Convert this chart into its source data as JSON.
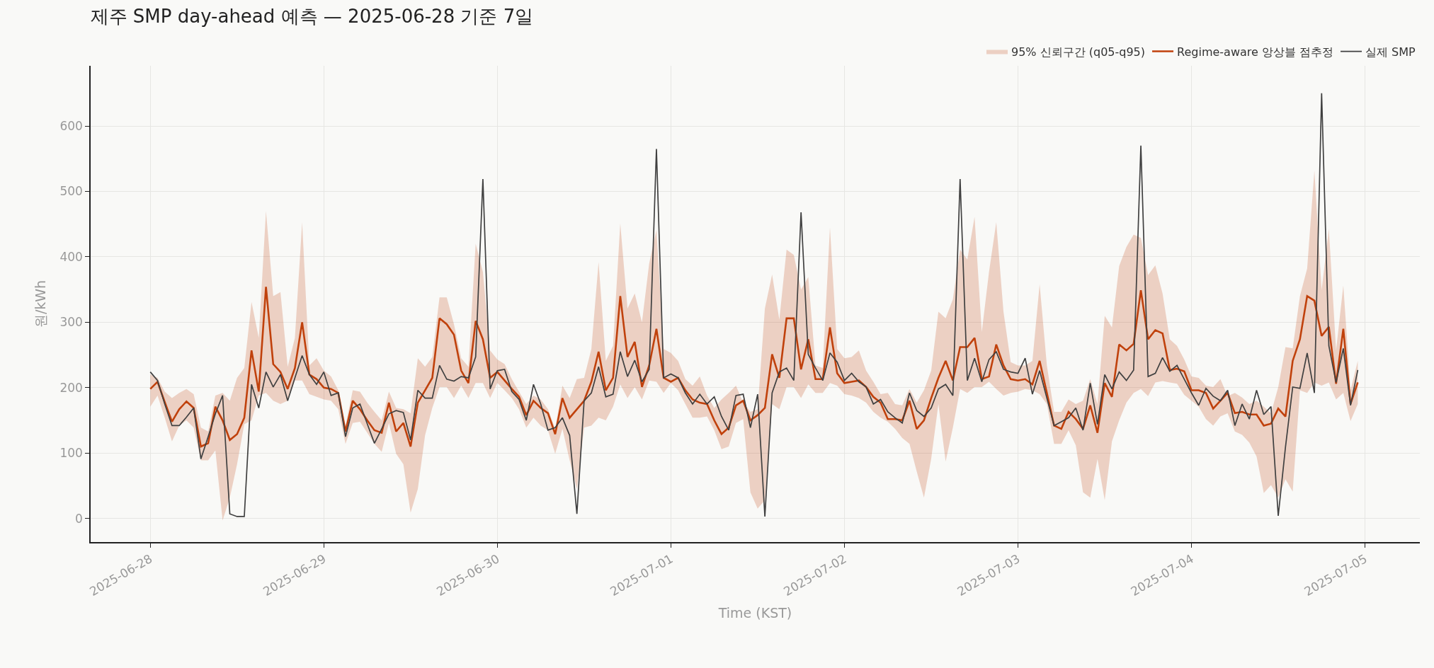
{
  "chart_data": {
    "type": "line",
    "title": "제주 SMP day-ahead 예측 — 2025-06-28 기준 7일",
    "xlabel": "Time (KST)",
    "ylabel": "원/kWh",
    "x": [
      "2025-06-28T00:00",
      "2025-06-28T01:00",
      "2025-06-28T02:00",
      "2025-06-28T03:00",
      "2025-06-28T04:00",
      "2025-06-28T05:00",
      "2025-06-28T06:00",
      "2025-06-28T07:00",
      "2025-06-28T08:00",
      "2025-06-28T09:00",
      "2025-06-28T10:00",
      "2025-06-28T11:00",
      "2025-06-28T12:00",
      "2025-06-28T13:00",
      "2025-06-28T14:00",
      "2025-06-28T15:00",
      "2025-06-28T16:00",
      "2025-06-28T17:00",
      "2025-06-28T18:00",
      "2025-06-28T19:00",
      "2025-06-28T20:00",
      "2025-06-28T21:00",
      "2025-06-28T22:00",
      "2025-06-28T23:00",
      "2025-06-29T00:00",
      "2025-06-29T01:00",
      "2025-06-29T02:00",
      "2025-06-29T03:00",
      "2025-06-29T04:00",
      "2025-06-29T05:00",
      "2025-06-29T06:00",
      "2025-06-29T07:00",
      "2025-06-29T08:00",
      "2025-06-29T09:00",
      "2025-06-29T10:00",
      "2025-06-29T11:00",
      "2025-06-29T12:00",
      "2025-06-29T13:00",
      "2025-06-29T14:00",
      "2025-06-29T15:00",
      "2025-06-29T16:00",
      "2025-06-29T17:00",
      "2025-06-29T18:00",
      "2025-06-29T19:00",
      "2025-06-29T20:00",
      "2025-06-29T21:00",
      "2025-06-29T22:00",
      "2025-06-29T23:00",
      "2025-06-30T00:00",
      "2025-06-30T01:00",
      "2025-06-30T02:00",
      "2025-06-30T03:00",
      "2025-06-30T04:00",
      "2025-06-30T05:00",
      "2025-06-30T06:00",
      "2025-06-30T07:00",
      "2025-06-30T08:00",
      "2025-06-30T09:00",
      "2025-06-30T10:00",
      "2025-06-30T11:00",
      "2025-06-30T12:00",
      "2025-06-30T13:00",
      "2025-06-30T14:00",
      "2025-06-30T15:00",
      "2025-06-30T16:00",
      "2025-06-30T17:00",
      "2025-06-30T18:00",
      "2025-06-30T19:00",
      "2025-06-30T20:00",
      "2025-06-30T21:00",
      "2025-06-30T22:00",
      "2025-06-30T23:00",
      "2025-07-01T00:00",
      "2025-07-01T01:00",
      "2025-07-01T02:00",
      "2025-07-01T03:00",
      "2025-07-01T04:00",
      "2025-07-01T05:00",
      "2025-07-01T06:00",
      "2025-07-01T07:00",
      "2025-07-01T08:00",
      "2025-07-01T09:00",
      "2025-07-01T10:00",
      "2025-07-01T11:00",
      "2025-07-01T12:00",
      "2025-07-01T13:00",
      "2025-07-01T14:00",
      "2025-07-01T15:00",
      "2025-07-01T16:00",
      "2025-07-01T17:00",
      "2025-07-01T18:00",
      "2025-07-01T19:00",
      "2025-07-01T20:00",
      "2025-07-01T21:00",
      "2025-07-01T22:00",
      "2025-07-01T23:00",
      "2025-07-02T00:00",
      "2025-07-02T01:00",
      "2025-07-02T02:00",
      "2025-07-02T03:00",
      "2025-07-02T04:00",
      "2025-07-02T05:00",
      "2025-07-02T06:00",
      "2025-07-02T07:00",
      "2025-07-02T08:00",
      "2025-07-02T09:00",
      "2025-07-02T10:00",
      "2025-07-02T11:00",
      "2025-07-02T12:00",
      "2025-07-02T13:00",
      "2025-07-02T14:00",
      "2025-07-02T15:00",
      "2025-07-02T16:00",
      "2025-07-02T17:00",
      "2025-07-02T18:00",
      "2025-07-02T19:00",
      "2025-07-02T20:00",
      "2025-07-02T21:00",
      "2025-07-02T22:00",
      "2025-07-02T23:00",
      "2025-07-03T00:00",
      "2025-07-03T01:00",
      "2025-07-03T02:00",
      "2025-07-03T03:00",
      "2025-07-03T04:00",
      "2025-07-03T05:00",
      "2025-07-03T06:00",
      "2025-07-03T07:00",
      "2025-07-03T08:00",
      "2025-07-03T09:00",
      "2025-07-03T10:00",
      "2025-07-03T11:00",
      "2025-07-03T12:00",
      "2025-07-03T13:00",
      "2025-07-03T14:00",
      "2025-07-03T15:00",
      "2025-07-03T16:00",
      "2025-07-03T17:00",
      "2025-07-03T18:00",
      "2025-07-03T19:00",
      "2025-07-03T20:00",
      "2025-07-03T21:00",
      "2025-07-03T22:00",
      "2025-07-03T23:00",
      "2025-07-04T00:00",
      "2025-07-04T01:00",
      "2025-07-04T02:00",
      "2025-07-04T03:00",
      "2025-07-04T04:00",
      "2025-07-04T05:00",
      "2025-07-04T06:00",
      "2025-07-04T07:00",
      "2025-07-04T08:00",
      "2025-07-04T09:00",
      "2025-07-04T10:00",
      "2025-07-04T11:00",
      "2025-07-04T12:00",
      "2025-07-04T13:00",
      "2025-07-04T14:00",
      "2025-07-04T15:00",
      "2025-07-04T16:00",
      "2025-07-04T17:00",
      "2025-07-04T18:00",
      "2025-07-04T19:00",
      "2025-07-04T20:00",
      "2025-07-04T21:00",
      "2025-07-04T22:00",
      "2025-07-04T23:00"
    ],
    "xlim": [
      "2025-06-27T15:45",
      "2025-07-05T07:35"
    ],
    "xticks": [
      "2025-06-28",
      "2025-06-29",
      "2025-06-30",
      "2025-07-01",
      "2025-07-02",
      "2025-07-03",
      "2025-07-04",
      "2025-07-05"
    ],
    "ylim": [
      -36,
      692
    ],
    "yticks": [
      0,
      100,
      200,
      300,
      400,
      500,
      600
    ],
    "grid": true,
    "legend": "top right",
    "annotations": [
      "95% 신뢰구간 (q05-q95)"
    ],
    "series": [
      {
        "name": "Regime-aware 앙상블 점추정",
        "color": "#c0410c",
        "upper": [
          220,
          215,
          194,
          184,
          192,
          198,
          190,
          139,
          133,
          188,
          192,
          180,
          215,
          230,
          331,
          276,
          470,
          340,
          346,
          232,
          276,
          453,
          234,
          245,
          226,
          217,
          196,
          142,
          196,
          194,
          177,
          163,
          150,
          194,
          169,
          167,
          161,
          245,
          232,
          247,
          338,
          338,
          297,
          245,
          232,
          420,
          377,
          257,
          243,
          236,
          213,
          194,
          175,
          188,
          182,
          167,
          137,
          203,
          184,
          213,
          215,
          259,
          392,
          241,
          264,
          451,
          321,
          344,
          300,
          390,
          441,
          259,
          253,
          241,
          213,
          203,
          217,
          188,
          169,
          182,
          192,
          203,
          177,
          163,
          167,
          321,
          373,
          304,
          411,
          403,
          350,
          369,
          234,
          230,
          445,
          259,
          245,
          247,
          257,
          226,
          209,
          190,
          192,
          175,
          173,
          198,
          177,
          196,
          226,
          316,
          306,
          335,
          411,
          396,
          461,
          285,
          377,
          453,
          316,
          239,
          234,
          234,
          241,
          358,
          234,
          163,
          163,
          182,
          175,
          180,
          213,
          175,
          310,
          292,
          386,
          415,
          434,
          429,
          372,
          387,
          344,
          274,
          264,
          243,
          217,
          215,
          203,
          201,
          213,
          187,
          192,
          185,
          175,
          180,
          171,
          161,
          201,
          262,
          260,
          340,
          382,
          532,
          349,
          443,
          257,
          356,
          196,
          241
        ],
        "lower": [
          171,
          188,
          154,
          118,
          142,
          150,
          139,
          89,
          89,
          104,
          -3,
          32,
          83,
          144,
          150,
          188,
          192,
          180,
          175,
          180,
          211,
          211,
          190,
          186,
          182,
          180,
          167,
          114,
          146,
          148,
          131,
          114,
          102,
          146,
          99,
          83,
          9,
          45,
          127,
          169,
          201,
          201,
          184,
          203,
          184,
          207,
          207,
          184,
          207,
          196,
          184,
          167,
          139,
          154,
          142,
          135,
          99,
          137,
          89,
          45,
          139,
          142,
          154,
          150,
          171,
          205,
          184,
          201,
          182,
          211,
          209,
          192,
          207,
          196,
          175,
          154,
          154,
          156,
          135,
          106,
          110,
          146,
          152,
          40,
          15,
          28,
          175,
          167,
          201,
          201,
          184,
          205,
          192,
          192,
          207,
          203,
          190,
          188,
          184,
          177,
          163,
          154,
          148,
          137,
          123,
          114,
          72,
          32,
          91,
          175,
          87,
          139,
          198,
          192,
          201,
          201,
          209,
          198,
          188,
          192,
          194,
          198,
          196,
          190,
          175,
          114,
          114,
          135,
          112,
          40,
          32,
          91,
          28,
          118,
          150,
          177,
          192,
          198,
          187,
          208,
          210,
          208,
          206,
          189,
          180,
          171,
          152,
          142,
          156,
          161,
          133,
          128,
          116,
          95,
          39,
          51,
          32,
          60,
          41,
          196,
          192,
          208,
          203,
          208,
          182,
          192,
          149,
          175
        ],
        "values": [
          198,
          209,
          178,
          148,
          167,
          179,
          169,
          110,
          115,
          171,
          150,
          120,
          129,
          154,
          257,
          194,
          354,
          236,
          224,
          198,
          230,
          300,
          220,
          213,
          200,
          198,
          192,
          133,
          180,
          167,
          150,
          135,
          131,
          177,
          133,
          146,
          110,
          177,
          196,
          215,
          306,
          297,
          281,
          226,
          207,
          302,
          274,
          215,
          224,
          211,
          198,
          186,
          158,
          180,
          169,
          161,
          129,
          184,
          154,
          167,
          180,
          209,
          255,
          196,
          215,
          340,
          247,
          270,
          201,
          234,
          290,
          215,
          209,
          215,
          196,
          182,
          177,
          175,
          150,
          129,
          139,
          173,
          180,
          150,
          158,
          169,
          251,
          215,
          306,
          306,
          228,
          274,
          213,
          213,
          292,
          222,
          207,
          209,
          211,
          201,
          186,
          177,
          152,
          152,
          150,
          180,
          137,
          150,
          184,
          215,
          241,
          211,
          262,
          262,
          276,
          213,
          217,
          266,
          234,
          213,
          211,
          213,
          205,
          241,
          192,
          142,
          137,
          163,
          152,
          137,
          173,
          131,
          207,
          186,
          266,
          257,
          267,
          349,
          274,
          288,
          283,
          227,
          229,
          225,
          196,
          196,
          192,
          168,
          180,
          192,
          161,
          163,
          159,
          159,
          142,
          145,
          168,
          156,
          241,
          274,
          340,
          333,
          279,
          293,
          206,
          290,
          175,
          208
        ]
      },
      {
        "name": "실제 SMP",
        "color": "#404040",
        "values": [
          224,
          211,
          175,
          142,
          142,
          155,
          169,
          91,
          125,
          160,
          188,
          7,
          3,
          3,
          205,
          169,
          224,
          201,
          220,
          180,
          215,
          249,
          220,
          205,
          224,
          188,
          192,
          125,
          169,
          175,
          145,
          115,
          137,
          160,
          165,
          162,
          120,
          196,
          184,
          184,
          234,
          213,
          210,
          217,
          215,
          247,
          519,
          198,
          226,
          228,
          194,
          182,
          150,
          205,
          175,
          135,
          139,
          154,
          127,
          7,
          180,
          192,
          232,
          186,
          190,
          255,
          217,
          242,
          209,
          228,
          565,
          215,
          221,
          215,
          192,
          175,
          190,
          175,
          186,
          156,
          135,
          188,
          190,
          139,
          190,
          3,
          192,
          224,
          230,
          211,
          468,
          251,
          230,
          211,
          253,
          239,
          211,
          222,
          209,
          201,
          175,
          182,
          163,
          154,
          146,
          192,
          165,
          156,
          169,
          198,
          205,
          188,
          519,
          211,
          245,
          209,
          243,
          255,
          228,
          224,
          222,
          245,
          190,
          226,
          184,
          142,
          148,
          154,
          169,
          135,
          207,
          144,
          220,
          198,
          224,
          211,
          227,
          570,
          217,
          222,
          246,
          225,
          234,
          213,
          192,
          173,
          199,
          187,
          180,
          196,
          142,
          175,
          152,
          196,
          159,
          171,
          4,
          109,
          201,
          199,
          253,
          192,
          650,
          264,
          208,
          260,
          173,
          227
        ]
      }
    ]
  }
}
